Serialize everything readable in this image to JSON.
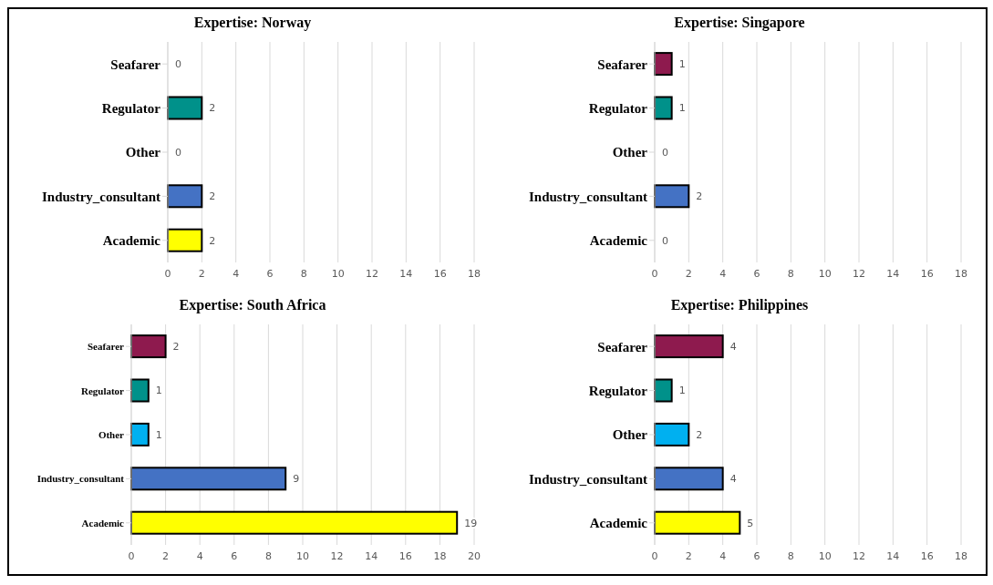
{
  "chart_data": [
    {
      "type": "bar",
      "orientation": "horizontal",
      "title": "Expertise: Norway",
      "categories": [
        "Seafarer",
        "Regulator",
        "Other",
        "Industry_consultant",
        "Academic"
      ],
      "values": [
        0,
        2,
        0,
        2,
        2
      ],
      "colors": [
        "#8e1a4e",
        "#00918a",
        "#00b0f0",
        "#4472c4",
        "#ffff00"
      ],
      "xlim": [
        0,
        18
      ],
      "xticks": [
        0,
        2,
        4,
        6,
        8,
        10,
        12,
        14,
        16,
        18
      ],
      "grid": "x",
      "data_labels": true
    },
    {
      "type": "bar",
      "orientation": "horizontal",
      "title": "Expertise: Singapore",
      "categories": [
        "Seafarer",
        "Regulator",
        "Other",
        "Industry_consultant",
        "Academic"
      ],
      "values": [
        1,
        1,
        0,
        2,
        0
      ],
      "colors": [
        "#8e1a4e",
        "#00918a",
        "#00b0f0",
        "#4472c4",
        "#ffff00"
      ],
      "xlim": [
        0,
        18
      ],
      "xticks": [
        0,
        2,
        4,
        6,
        8,
        10,
        12,
        14,
        16,
        18
      ],
      "grid": "x",
      "data_labels": true
    },
    {
      "type": "bar",
      "orientation": "horizontal",
      "title": "Expertise: South Africa",
      "categories": [
        "Seafarer",
        "Regulator",
        "Other",
        "Industry_consultant",
        "Academic"
      ],
      "values": [
        2,
        1,
        1,
        9,
        19
      ],
      "colors": [
        "#8e1a4e",
        "#00918a",
        "#00b0f0",
        "#4472c4",
        "#ffff00"
      ],
      "xlim": [
        0,
        20
      ],
      "xticks": [
        0,
        2,
        4,
        6,
        8,
        10,
        12,
        14,
        16,
        18,
        20
      ],
      "grid": "x",
      "data_labels": true
    },
    {
      "type": "bar",
      "orientation": "horizontal",
      "title": "Expertise: Philippines",
      "categories": [
        "Seafarer",
        "Regulator",
        "Other",
        "Industry_consultant",
        "Academic"
      ],
      "values": [
        4,
        1,
        2,
        4,
        5
      ],
      "colors": [
        "#8e1a4e",
        "#00918a",
        "#00b0f0",
        "#4472c4",
        "#ffff00"
      ],
      "xlim": [
        0,
        18
      ],
      "xticks": [
        0,
        2,
        4,
        6,
        8,
        10,
        12,
        14,
        16,
        18
      ],
      "grid": "x",
      "data_labels": true
    }
  ]
}
